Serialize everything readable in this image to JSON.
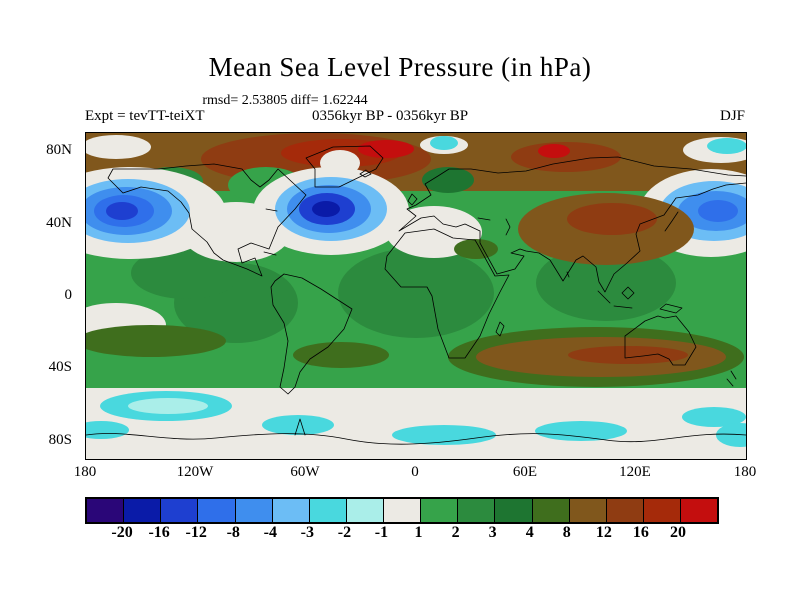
{
  "title": "Mean Sea Level Pressure (in hPa)",
  "stats_line": "rmsd= 2.53805 diff= 1.62244",
  "header": {
    "experiment": "Expt = tevTT-teiXT",
    "period": "0356kyr BP - 0356kyr BP",
    "season": "DJF"
  },
  "axes": {
    "lat_ticks": [
      {
        "label": "80N",
        "lat": 80
      },
      {
        "label": "40N",
        "lat": 40
      },
      {
        "label": "0",
        "lat": 0
      },
      {
        "label": "40S",
        "lat": -40
      },
      {
        "label": "80S",
        "lat": -80
      }
    ],
    "lon_ticks": [
      {
        "label": "180",
        "lon": -180
      },
      {
        "label": "120W",
        "lon": -120
      },
      {
        "label": "60W",
        "lon": -60
      },
      {
        "label": "0",
        "lon": 0
      },
      {
        "label": "60E",
        "lon": 60
      },
      {
        "label": "120E",
        "lon": 120
      },
      {
        "label": "180",
        "lon": 180
      }
    ]
  },
  "colorbar": {
    "tick_labels": [
      "-20",
      "-16",
      "-12",
      "-8",
      "-4",
      "-3",
      "-2",
      "-1",
      "1",
      "2",
      "3",
      "4",
      "8",
      "12",
      "16",
      "20"
    ],
    "colors": [
      "#2a0678",
      "#0a1ba8",
      "#1e3fd0",
      "#2f6fea",
      "#3f8eee",
      "#6cbdf5",
      "#49d8de",
      "#aaeee9",
      "#eceae4",
      "#36a34a",
      "#2c8b3e",
      "#1e7531",
      "#3f6e1d",
      "#80571c",
      "#8f3c12",
      "#a52a0a",
      "#c40e0e"
    ]
  },
  "chart_data": {
    "type": "heatmap",
    "title": "Mean Sea Level Pressure (in hPa)",
    "subtitle": "rmsd= 2.53805 diff= 1.62244",
    "variable": "mean sea level pressure difference",
    "units": "hPa",
    "season": "DJF",
    "experiment_minus_control": "tevTT-teiXT",
    "period": "0356kyr BP - 0356kyr BP",
    "rmsd": 2.53805,
    "mean_diff": 1.62244,
    "projection": "equirectangular world map with coastlines",
    "lon_range": [
      -180,
      180
    ],
    "lat_range": [
      -90,
      90
    ],
    "contour_levels": [
      -20,
      -16,
      -12,
      -8,
      -4,
      -3,
      -2,
      -1,
      1,
      2,
      3,
      4,
      8,
      12,
      16,
      20
    ],
    "palette": [
      "#2a0678",
      "#0a1ba8",
      "#1e3fd0",
      "#2f6fea",
      "#3f8eee",
      "#6cbdf5",
      "#49d8de",
      "#aaeee9",
      "#eceae4",
      "#36a34a",
      "#2c8b3e",
      "#1e7531",
      "#3f6e1d",
      "#80571c",
      "#8f3c12",
      "#a52a0a",
      "#c40e0e"
    ],
    "legend_position": "horizontal colorbar below map",
    "notable_features": [
      "Strong negative anomalies (-12 to -20 hPa) over the North Pacific near 40-50N at the left map edge",
      "Strong negative anomalies (-16 to -20 hPa) over the North Atlantic south of Greenland",
      "Negative anomaly cell over the far northwest Pacific at the right map edge",
      "Broad positive anomalies (8 to >20 hPa) across the Arctic, strongest (dark red) near Greenland, the Canadian Arctic and parts of Siberia",
      "Positive anomalies (8-16 hPa) over central and east Asia",
      "Widespread moderate positive anomalies (1-4 hPa, green) across the tropics and subtropics",
      "Positive band (4-16 hPa, olive/brown) across the southern Indian Ocean near 40S",
      "Near-zero white band around 55-65S with cyan patches (-2 to -3 hPa) along the Antarctic coast"
    ]
  },
  "map_regions": [
    [
      "r",
      0,
      0,
      660,
      326,
      8
    ],
    [
      "r",
      0,
      0,
      660,
      58,
      13
    ],
    [
      "e",
      230,
      26,
      115,
      26,
      14
    ],
    [
      "e",
      255,
      20,
      60,
      14,
      15
    ],
    [
      "e",
      300,
      16,
      28,
      9,
      16
    ],
    [
      "e",
      480,
      24,
      55,
      15,
      14
    ],
    [
      "e",
      468,
      18,
      16,
      7,
      16
    ],
    [
      "e",
      30,
      14,
      35,
      12,
      8
    ],
    [
      "e",
      635,
      17,
      38,
      13,
      8
    ],
    [
      "e",
      641,
      13,
      20,
      8,
      6
    ],
    [
      "e",
      358,
      12,
      24,
      9,
      8
    ],
    [
      "e",
      358,
      10,
      14,
      7,
      6
    ],
    [
      "r",
      0,
      58,
      660,
      198,
      9
    ],
    [
      "e",
      180,
      52,
      38,
      18,
      9
    ],
    [
      "e",
      85,
      48,
      32,
      14,
      10
    ],
    [
      "e",
      362,
      47,
      26,
      13,
      11
    ],
    [
      "e",
      150,
      170,
      62,
      40,
      10
    ],
    [
      "e",
      330,
      160,
      78,
      45,
      10
    ],
    [
      "e",
      520,
      150,
      70,
      38,
      10
    ],
    [
      "e",
      100,
      140,
      55,
      26,
      10
    ],
    [
      "e",
      45,
      80,
      95,
      46,
      8
    ],
    [
      "e",
      245,
      78,
      78,
      44,
      8
    ],
    [
      "e",
      625,
      80,
      72,
      44,
      8
    ],
    [
      "e",
      150,
      99,
      55,
      30,
      8
    ],
    [
      "e",
      348,
      99,
      48,
      26,
      8
    ],
    [
      "e",
      30,
      192,
      50,
      22,
      8
    ],
    [
      "e",
      42,
      78,
      62,
      32,
      5
    ],
    [
      "e",
      40,
      78,
      46,
      24,
      4
    ],
    [
      "e",
      38,
      78,
      30,
      16,
      3
    ],
    [
      "e",
      36,
      78,
      16,
      9,
      2
    ],
    [
      "e",
      245,
      76,
      56,
      32,
      5
    ],
    [
      "e",
      243,
      76,
      42,
      24,
      4
    ],
    [
      "e",
      241,
      76,
      28,
      16,
      2
    ],
    [
      "e",
      240,
      76,
      14,
      8,
      1
    ],
    [
      "e",
      628,
      78,
      54,
      30,
      5
    ],
    [
      "e",
      630,
      78,
      38,
      20,
      4
    ],
    [
      "e",
      632,
      78,
      20,
      11,
      3
    ],
    [
      "e",
      520,
      96,
      88,
      36,
      13
    ],
    [
      "e",
      526,
      86,
      45,
      16,
      14
    ],
    [
      "e",
      390,
      116,
      22,
      10,
      12
    ],
    [
      "e",
      254,
      30,
      20,
      13,
      8
    ],
    [
      "e",
      65,
      208,
      75,
      16,
      12
    ],
    [
      "e",
      255,
      222,
      48,
      13,
      12
    ],
    [
      "e",
      510,
      224,
      148,
      30,
      12
    ],
    [
      "e",
      515,
      224,
      125,
      20,
      13
    ],
    [
      "e",
      542,
      222,
      60,
      9,
      14
    ],
    [
      "r",
      0,
      255,
      660,
      71,
      8
    ],
    [
      "e",
      80,
      273,
      66,
      15,
      6
    ],
    [
      "e",
      82,
      273,
      40,
      8,
      7
    ],
    [
      "e",
      212,
      292,
      36,
      10,
      6
    ],
    [
      "e",
      358,
      302,
      52,
      10,
      6
    ],
    [
      "e",
      495,
      298,
      46,
      10,
      6
    ],
    [
      "e",
      628,
      284,
      32,
      10,
      6
    ],
    [
      "e",
      654,
      302,
      24,
      12,
      6
    ],
    [
      "e",
      15,
      297,
      28,
      9,
      6
    ]
  ]
}
